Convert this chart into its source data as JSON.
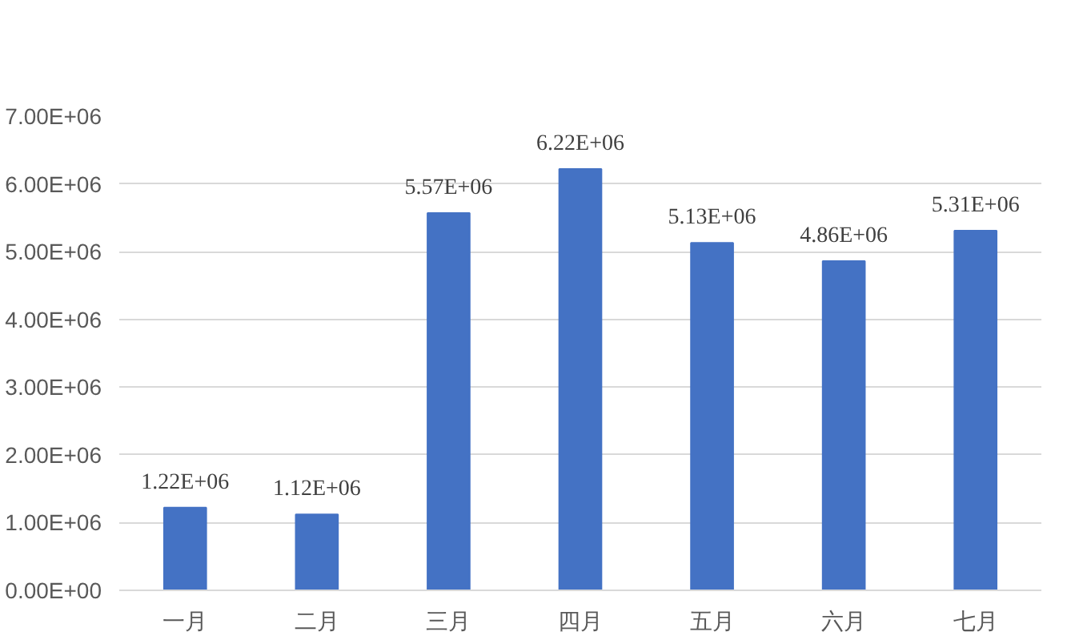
{
  "chart_data": {
    "type": "bar",
    "categories": [
      "一月",
      "二月",
      "三月",
      "四月",
      "五月",
      "六月",
      "七月"
    ],
    "values": [
      1220000,
      1120000,
      5570000,
      6220000,
      5130000,
      4860000,
      5310000
    ],
    "value_labels": [
      "1.22E+06",
      "1.12E+06",
      "5.57E+06",
      "6.22E+06",
      "5.13E+06",
      "4.86E+06",
      "5.31E+06"
    ],
    "color": "#4472c4",
    "ylim": [
      0,
      7000000
    ],
    "yticks": [
      {
        "value": 0,
        "label": "0.00E+00"
      },
      {
        "value": 1000000,
        "label": "1.00E+06"
      },
      {
        "value": 2000000,
        "label": "2.00E+06"
      },
      {
        "value": 3000000,
        "label": "3.00E+06"
      },
      {
        "value": 4000000,
        "label": "4.00E+06"
      },
      {
        "value": 5000000,
        "label": "5.00E+06"
      },
      {
        "value": 6000000,
        "label": "6.00E+06"
      },
      {
        "value": 7000000,
        "label": "7.00E+06"
      }
    ],
    "grid": "y"
  }
}
